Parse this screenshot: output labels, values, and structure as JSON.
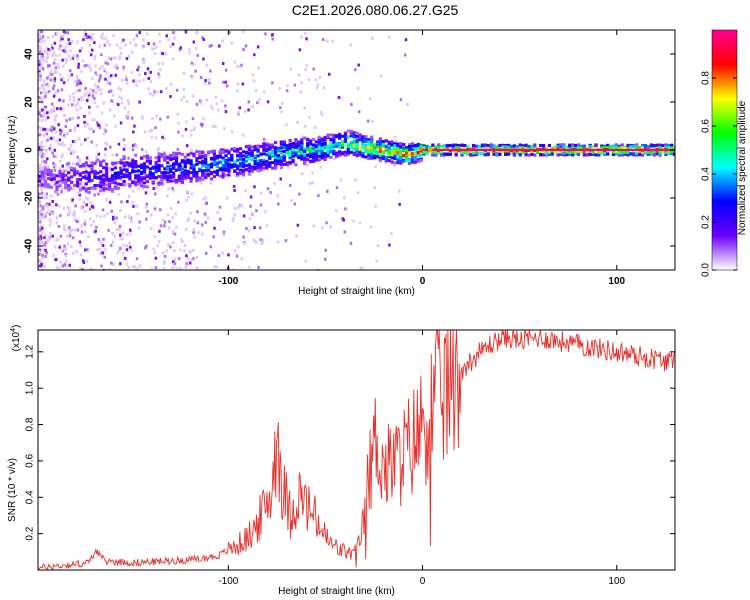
{
  "title": "C2E1.2026.080.06.27.G25",
  "chart_data": [
    {
      "type": "heatmap",
      "xlabel": "Height of straight line (km)",
      "ylabel": "Frequency (Hz)",
      "xlim": [
        -198,
        130
      ],
      "ylim": [
        -50,
        50
      ],
      "x_tick_labels": [
        "-100",
        "0",
        "100"
      ],
      "x_ticks": [
        -100,
        0,
        100
      ],
      "y_tick_labels": [
        "-40",
        "-20",
        "0",
        "20",
        "40"
      ],
      "y_ticks": [
        -40,
        -20,
        0,
        20,
        40
      ],
      "colorbar": {
        "label": "Normalized spectral amplitude",
        "range": [
          0,
          1
        ],
        "tick_labels": [
          "0.0",
          "0.2",
          "0.4",
          "0.6",
          "0.8"
        ],
        "ticks": [
          0,
          0.2,
          0.4,
          0.6,
          0.8
        ],
        "colors": [
          "#ffffff",
          "#6a00ff",
          "#0000ff",
          "#00ffff",
          "#00ff00",
          "#ffff00",
          "#ff0000",
          "#ff0090"
        ]
      },
      "ridge": {
        "description_points_x": [
          -190,
          -170,
          -150,
          -130,
          -110,
          -90,
          -70,
          -55,
          -45,
          -38,
          -30,
          -22,
          -15,
          -8,
          0,
          10,
          40,
          80,
          130
        ],
        "description_points_y": [
          -12,
          -11,
          -9,
          -8,
          -6,
          -4,
          -1,
          0,
          2,
          3,
          1,
          0,
          -1,
          -2,
          0,
          0,
          0,
          0,
          0
        ],
        "amplitude": [
          0.15,
          0.25,
          0.3,
          0.35,
          0.4,
          0.45,
          0.5,
          0.55,
          0.6,
          0.7,
          0.8,
          0.85,
          0.85,
          0.9,
          0.92,
          0.95,
          0.95,
          0.95,
          0.95
        ]
      }
    },
    {
      "type": "line",
      "xlabel": "Height of straight line (km)",
      "ylabel": "SNR (10 * v/v)",
      "y_multiplier": "(x10",
      "y_multiplier_exp": "4",
      "y_multiplier_close": ")",
      "xlim": [
        -198,
        130
      ],
      "ylim": [
        0,
        1.32
      ],
      "x_tick_labels": [
        "-100",
        "0",
        "100"
      ],
      "x_ticks": [
        -100,
        0,
        100
      ],
      "y_tick_labels": [
        "0.2",
        "0.4",
        "0.6",
        "0.8",
        "1.0",
        "1.2"
      ],
      "y_ticks": [
        0.2,
        0.4,
        0.6,
        0.8,
        1.0,
        1.2
      ],
      "line_color": "#e8302a",
      "series": [
        {
          "name": "SNR",
          "x": [
            -198,
            -190,
            -180,
            -172,
            -168,
            -164,
            -150,
            -130,
            -115,
            -105,
            -98,
            -92,
            -88,
            -84,
            -80,
            -77,
            -75,
            -72,
            -68,
            -64,
            -60,
            -56,
            -52,
            -48,
            -44,
            -40,
            -37,
            -34,
            -31,
            -29,
            -27,
            -25,
            -23,
            -21,
            -19,
            -16,
            -12,
            -8,
            -4,
            0,
            4,
            8,
            12,
            16,
            20,
            25,
            30,
            35,
            40,
            45,
            50,
            55,
            60,
            65,
            70,
            80,
            90,
            100,
            110,
            120,
            130
          ],
          "y": [
            0.01,
            0.02,
            0.03,
            0.04,
            0.11,
            0.05,
            0.04,
            0.05,
            0.06,
            0.08,
            0.12,
            0.16,
            0.2,
            0.28,
            0.35,
            0.5,
            0.78,
            0.45,
            0.3,
            0.42,
            0.35,
            0.3,
            0.22,
            0.15,
            0.12,
            0.1,
            0.09,
            0.1,
            0.22,
            0.42,
            0.55,
            0.68,
            0.72,
            0.6,
            0.55,
            0.58,
            0.6,
            0.66,
            0.72,
            0.8,
            0.88,
            0.95,
            1.0,
            1.05,
            1.1,
            1.15,
            1.2,
            1.24,
            1.27,
            1.28,
            1.26,
            1.27,
            1.28,
            1.27,
            1.26,
            1.24,
            1.22,
            1.2,
            1.18,
            1.16,
            1.14
          ]
        }
      ]
    }
  ]
}
